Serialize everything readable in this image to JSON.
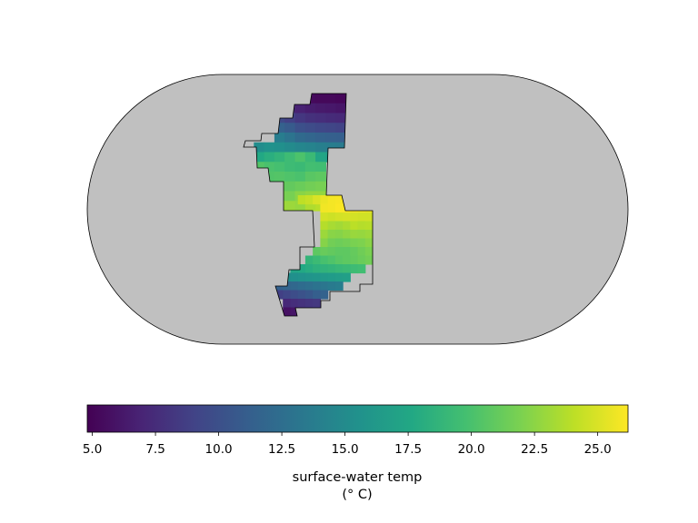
{
  "chart_data": {
    "type": "heatmap",
    "projection": "pseudocylindrical (Eckert IV-like)",
    "background_color": "#c0c0c0",
    "colormap": "viridis",
    "colorbar": {
      "orientation": "horizontal",
      "vmin": 4.8,
      "vmax": 26.2,
      "ticks": [
        5.0,
        7.5,
        10.0,
        12.5,
        15.0,
        17.5,
        20.0,
        22.5,
        25.0
      ],
      "tick_labels": [
        "5.0",
        "7.5",
        "10.0",
        "12.5",
        "15.0",
        "17.5",
        "20.0",
        "22.5",
        "25.0"
      ],
      "label_line1": "surface-water temp",
      "label_line2": "(° C)"
    },
    "grid_rows": [
      {
        "cells": [
          [
            "-",
            "-",
            "-",
            "-",
            "-",
            5.5,
            5.3,
            5.2,
            5.2,
            5.1
          ]
        ]
      },
      {
        "cells": [
          [
            "-",
            "-",
            "-",
            "-",
            7.5,
            6.8,
            6.5,
            6.3,
            6.2,
            6.0
          ]
        ]
      },
      {
        "cells": [
          [
            "-",
            "-",
            "-",
            9.5,
            8.9,
            8.2,
            7.8,
            7.6,
            7.4,
            7.3
          ]
        ]
      },
      {
        "cells": [
          [
            "-",
            "-",
            "-",
            11.5,
            10.9,
            10.0,
            9.7,
            9.4,
            9.2,
            9.0
          ]
        ]
      },
      {
        "cells": [
          [
            "-",
            "-",
            "-",
            13.8,
            13.0,
            12.2,
            11.8,
            11.5,
            11.3,
            11.2
          ]
        ]
      },
      {
        "cells": [
          [
            "-",
            15.2,
            15.6,
            15.4,
            15.0,
            14.6,
            14.3,
            14.0,
            13.8,
            13.6
          ]
        ]
      },
      {
        "cells": [
          [
            16.8,
            17.6,
            18.2,
            18.7,
            19.4,
            20.1,
            19.2,
            17.4,
            16.6,
            16.2
          ]
        ]
      },
      {
        "cells": [
          [
            "-",
            20.4,
            20.0,
            19.8,
            19.4,
            19.2,
            19.7,
            19.6,
            "-",
            "-"
          ]
        ]
      },
      {
        "cells": [
          [
            "-",
            20.9,
            20.3,
            20.4,
            20.2,
            20.0,
            20.6,
            20.8,
            "-",
            "-"
          ]
        ]
      },
      {
        "cells": [
          [
            "-",
            "-",
            21.6,
            21.2,
            21.0,
            21.3,
            21.6,
            21.8,
            "-",
            "-"
          ]
        ]
      },
      {
        "cells": [
          [
            "-",
            "-",
            22.3,
            22.0,
            21.8,
            22.4,
            22.7,
            22.7,
            "-",
            "-"
          ]
        ]
      },
      {
        "cells": [
          [
            "-",
            "-",
            "-",
            23.2,
            23.0,
            22.8,
            23.6,
            23.9,
            "-",
            "-"
          ]
        ]
      },
      {
        "cells": [
          [
            "-",
            "-",
            "-",
            24.1,
            24.4,
            25.0,
            25.6,
            25.9,
            26.0,
            "-",
            "-",
            "-",
            "-"
          ]
        ]
      },
      {
        "cells": [
          [
            "-",
            "-",
            "-",
            "-",
            "-",
            "-",
            25.8,
            25.9,
            26.1,
            26.1,
            25.9,
            25.8,
            25.6
          ]
        ]
      },
      {
        "cells": [
          [
            "-",
            "-",
            "-",
            "-",
            "-",
            "-",
            24.8,
            24.6,
            24.8,
            24.9,
            24.8,
            24.7,
            24.7
          ]
        ]
      },
      {
        "cells": [
          [
            "-",
            "-",
            "-",
            "-",
            "-",
            "-",
            23.8,
            23.4,
            23.2,
            23.5,
            24.0,
            23.8,
            23.9
          ]
        ]
      },
      {
        "cells": [
          [
            "-",
            "-",
            "-",
            "-",
            "-",
            "-",
            23.0,
            22.4,
            22.3,
            22.6,
            22.9,
            22.8,
            23.0
          ]
        ]
      },
      {
        "cells": [
          [
            "-",
            "-",
            "-",
            "-",
            "-",
            "-",
            22.3,
            21.6,
            21.4,
            21.6,
            21.9,
            22.0,
            22.4
          ]
        ]
      },
      {
        "cells": [
          [
            "-",
            "-",
            "-",
            "-",
            "-",
            20.8,
            21.2,
            21.0,
            20.8,
            20.8,
            21.1,
            21.5,
            21.9
          ]
        ]
      },
      {
        "cells": [
          [
            "-",
            "-",
            "-",
            "-",
            18.8,
            19.3,
            19.9,
            20.2,
            20.6,
            20.8,
            21.0,
            21.3,
            21.6
          ]
        ]
      },
      {
        "cells": [
          [
            "-",
            "-",
            17.2,
            17.6,
            18.0,
            18.4,
            18.6,
            18.8,
            19.0,
            19.2,
            19.4,
            19.6,
            "-"
          ]
        ]
      },
      {
        "cells": [
          [
            "-",
            15.2,
            15.4,
            15.6,
            15.8,
            16.0,
            16.2,
            16.4,
            16.6,
            16.8,
            "-",
            "-",
            "-"
          ]
        ]
      },
      {
        "cells": [
          [
            11.4,
            11.7,
            12.0,
            12.3,
            12.6,
            12.9,
            13.2,
            13.5,
            13.8,
            "-",
            "-",
            "-",
            "-"
          ]
        ]
      },
      {
        "cells": [
          [
            8.8,
            9.2,
            9.8,
            10.2,
            10.6,
            11.2,
            11.5,
            "-",
            "-",
            "-",
            "-",
            "-",
            "-"
          ]
        ]
      },
      {
        "cells": [
          [
            "-",
            7.2,
            7.6,
            7.9,
            8.1,
            8.3,
            "-",
            "-",
            "-",
            "-",
            "-",
            "-",
            "-"
          ]
        ]
      },
      {
        "cells": [
          [
            "-",
            5.8,
            6.0,
            "-",
            "-",
            "-",
            "-",
            "-",
            "-",
            "-",
            "-",
            "-",
            "-"
          ]
        ]
      }
    ]
  }
}
